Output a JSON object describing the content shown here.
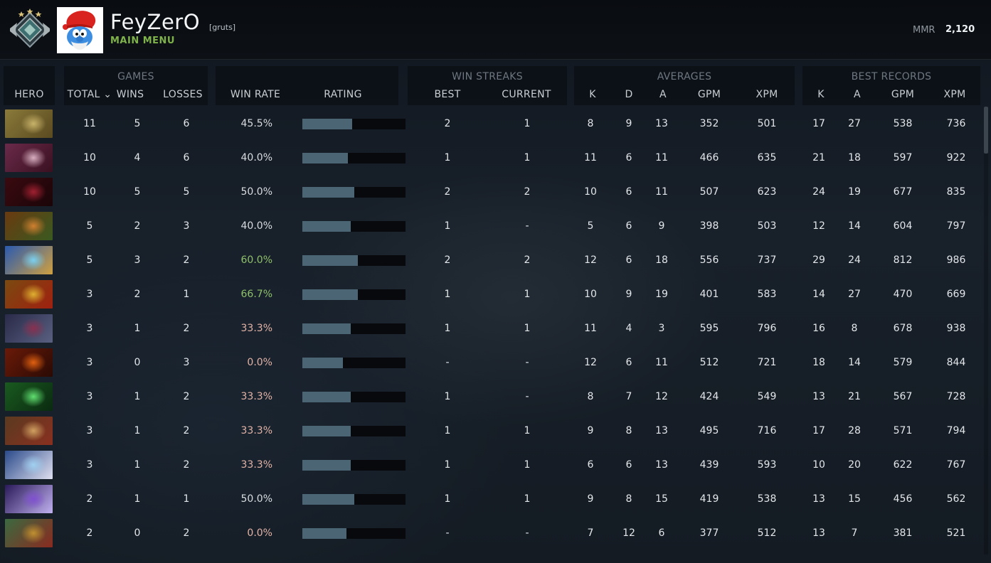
{
  "header": {
    "player_name": "FeyZerO",
    "player_tag": "[gruts]",
    "main_menu": "MAIN MENU",
    "mmr_label": "MMR",
    "mmr_value": "2,120"
  },
  "groups": {
    "games": "GAMES",
    "win_streaks": "WIN STREAKS",
    "averages": "AVERAGES",
    "best_records": "BEST RECORDS"
  },
  "columns": {
    "hero": "HERO",
    "total": "TOTAL ⌄",
    "wins": "WINS",
    "losses": "LOSSES",
    "win_rate": "WIN RATE",
    "rating": "RATING",
    "best": "BEST",
    "current": "CURRENT",
    "avg_k": "K",
    "avg_d": "D",
    "avg_a": "A",
    "avg_gpm": "GPM",
    "avg_xpm": "XPM",
    "best_k": "K",
    "best_a": "A",
    "best_gpm": "GPM",
    "best_xpm": "XPM"
  },
  "colors": {
    "winrate_high": "#8fc06a",
    "winrate_mid": "#d9dde0",
    "winrate_low": "#e2b3a6",
    "rating_bar": "#4b6574"
  },
  "rows": [
    {
      "total": "11",
      "wins": "5",
      "losses": "6",
      "win_rate": "45.5%",
      "rating": 0.48,
      "best": "2",
      "current": "1",
      "k": "8",
      "d": "9",
      "a": "13",
      "gpm": "352",
      "xpm": "501",
      "bk": "17",
      "ba": "27",
      "bgpm": "538",
      "bxpm": "736",
      "tone": "mid"
    },
    {
      "total": "10",
      "wins": "4",
      "losses": "6",
      "win_rate": "40.0%",
      "rating": 0.44,
      "best": "1",
      "current": "1",
      "k": "11",
      "d": "6",
      "a": "11",
      "gpm": "466",
      "xpm": "635",
      "bk": "21",
      "ba": "18",
      "bgpm": "597",
      "bxpm": "922",
      "tone": "mid"
    },
    {
      "total": "10",
      "wins": "5",
      "losses": "5",
      "win_rate": "50.0%",
      "rating": 0.5,
      "best": "2",
      "current": "2",
      "k": "10",
      "d": "6",
      "a": "11",
      "gpm": "507",
      "xpm": "623",
      "bk": "24",
      "ba": "19",
      "bgpm": "677",
      "bxpm": "835",
      "tone": "mid"
    },
    {
      "total": "5",
      "wins": "2",
      "losses": "3",
      "win_rate": "40.0%",
      "rating": 0.47,
      "best": "1",
      "current": "-",
      "k": "5",
      "d": "6",
      "a": "9",
      "gpm": "398",
      "xpm": "503",
      "bk": "12",
      "ba": "14",
      "bgpm": "604",
      "bxpm": "797",
      "tone": "mid"
    },
    {
      "total": "5",
      "wins": "3",
      "losses": "2",
      "win_rate": "60.0%",
      "rating": 0.54,
      "best": "2",
      "current": "2",
      "k": "12",
      "d": "6",
      "a": "18",
      "gpm": "556",
      "xpm": "737",
      "bk": "29",
      "ba": "24",
      "bgpm": "812",
      "bxpm": "986",
      "tone": "high"
    },
    {
      "total": "3",
      "wins": "2",
      "losses": "1",
      "win_rate": "66.7%",
      "rating": 0.54,
      "best": "1",
      "current": "1",
      "k": "10",
      "d": "9",
      "a": "19",
      "gpm": "401",
      "xpm": "583",
      "bk": "14",
      "ba": "27",
      "bgpm": "470",
      "bxpm": "669",
      "tone": "high"
    },
    {
      "total": "3",
      "wins": "1",
      "losses": "2",
      "win_rate": "33.3%",
      "rating": 0.47,
      "best": "1",
      "current": "1",
      "k": "11",
      "d": "4",
      "a": "3",
      "gpm": "595",
      "xpm": "796",
      "bk": "16",
      "ba": "8",
      "bgpm": "678",
      "bxpm": "938",
      "tone": "low"
    },
    {
      "total": "3",
      "wins": "0",
      "losses": "3",
      "win_rate": "0.0%",
      "rating": 0.39,
      "best": "-",
      "current": "-",
      "k": "12",
      "d": "6",
      "a": "11",
      "gpm": "512",
      "xpm": "721",
      "bk": "18",
      "ba": "14",
      "bgpm": "579",
      "bxpm": "844",
      "tone": "low"
    },
    {
      "total": "3",
      "wins": "1",
      "losses": "2",
      "win_rate": "33.3%",
      "rating": 0.47,
      "best": "1",
      "current": "-",
      "k": "8",
      "d": "7",
      "a": "12",
      "gpm": "424",
      "xpm": "549",
      "bk": "13",
      "ba": "21",
      "bgpm": "567",
      "bxpm": "728",
      "tone": "low"
    },
    {
      "total": "3",
      "wins": "1",
      "losses": "2",
      "win_rate": "33.3%",
      "rating": 0.47,
      "best": "1",
      "current": "1",
      "k": "9",
      "d": "8",
      "a": "13",
      "gpm": "495",
      "xpm": "716",
      "bk": "17",
      "ba": "28",
      "bgpm": "571",
      "bxpm": "794",
      "tone": "low"
    },
    {
      "total": "3",
      "wins": "1",
      "losses": "2",
      "win_rate": "33.3%",
      "rating": 0.47,
      "best": "1",
      "current": "1",
      "k": "6",
      "d": "6",
      "a": "13",
      "gpm": "439",
      "xpm": "593",
      "bk": "10",
      "ba": "20",
      "bgpm": "622",
      "bxpm": "767",
      "tone": "low"
    },
    {
      "total": "2",
      "wins": "1",
      "losses": "1",
      "win_rate": "50.0%",
      "rating": 0.5,
      "best": "1",
      "current": "1",
      "k": "9",
      "d": "8",
      "a": "15",
      "gpm": "419",
      "xpm": "538",
      "bk": "13",
      "ba": "15",
      "bgpm": "456",
      "bxpm": "562",
      "tone": "mid"
    },
    {
      "total": "2",
      "wins": "0",
      "losses": "2",
      "win_rate": "0.0%",
      "rating": 0.43,
      "best": "-",
      "current": "-",
      "k": "7",
      "d": "12",
      "a": "6",
      "gpm": "377",
      "xpm": "512",
      "bk": "13",
      "ba": "7",
      "bgpm": "381",
      "bxpm": "521",
      "tone": "low"
    }
  ]
}
